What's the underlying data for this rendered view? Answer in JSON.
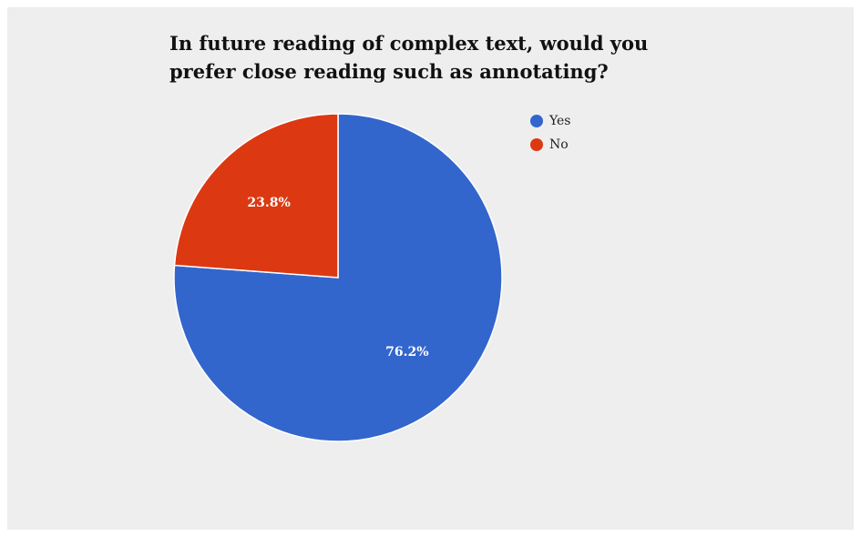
{
  "chart_data": {
    "type": "pie",
    "title_lines": [
      "In future reading of complex text, would you",
      "prefer close reading such as annotating?"
    ],
    "categories": [
      "Yes",
      "No"
    ],
    "values": [
      76.2,
      23.8
    ],
    "value_labels": [
      "76.2%",
      "23.8%"
    ],
    "colors": [
      "#3366cc",
      "#dc3912"
    ],
    "legend_position": "top-right",
    "start_angle": "12 o'clock",
    "direction": "clockwise"
  }
}
